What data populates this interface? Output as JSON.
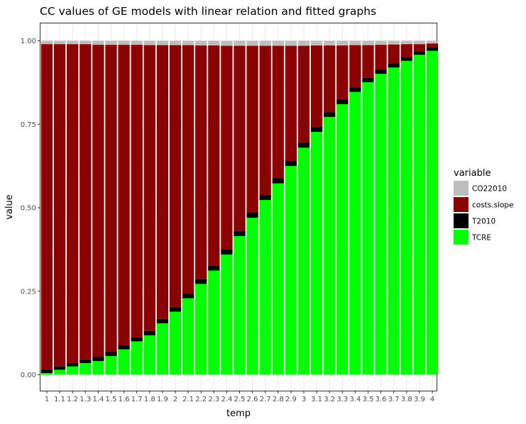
{
  "chart_data": {
    "type": "bar",
    "stacked": true,
    "title": "CC values of GE models with linear relation and fitted graphs",
    "xlabel": "temp",
    "ylabel": "value",
    "ylim": [
      0,
      1
    ],
    "yticks": [
      "0.00",
      "0.25",
      "0.50",
      "0.75",
      "1.00"
    ],
    "ytick_values": [
      0,
      0.25,
      0.5,
      0.75,
      1.0
    ],
    "grid": true,
    "legend_position": "right",
    "legend_title": "variable",
    "categories": [
      "1",
      "1.1",
      "1.2",
      "1.3",
      "1.4",
      "1.5",
      "1.6",
      "1.7",
      "1.8",
      "1.9",
      "2",
      "2.1",
      "2.2",
      "2.3",
      "2.4",
      "2.5",
      "2.6",
      "2.7",
      "2.8",
      "2.9",
      "3",
      "3.1",
      "3.2",
      "3.3",
      "3.4",
      "3.5",
      "3.6",
      "3.7",
      "3.8",
      "3.9",
      "4"
    ],
    "series": [
      {
        "name": "CO22010",
        "color": "#bebebe",
        "values": [
          0.01,
          0.01,
          0.01,
          0.01,
          0.012,
          0.012,
          0.012,
          0.012,
          0.013,
          0.013,
          0.013,
          0.013,
          0.014,
          0.014,
          0.015,
          0.015,
          0.015,
          0.015,
          0.015,
          0.015,
          0.015,
          0.014,
          0.014,
          0.014,
          0.013,
          0.013,
          0.012,
          0.011,
          0.01,
          0.01,
          0.008
        ]
      },
      {
        "name": "costs.slope",
        "color": "#8b0000",
        "values": [
          0.975,
          0.965,
          0.955,
          0.945,
          0.935,
          0.92,
          0.9,
          0.876,
          0.856,
          0.82,
          0.785,
          0.745,
          0.7,
          0.66,
          0.61,
          0.555,
          0.5,
          0.447,
          0.397,
          0.345,
          0.29,
          0.245,
          0.2,
          0.162,
          0.127,
          0.098,
          0.075,
          0.058,
          0.04,
          0.022,
          0.012
        ]
      },
      {
        "name": "T2010",
        "color": "#000000",
        "values": [
          0.01,
          0.01,
          0.01,
          0.01,
          0.012,
          0.012,
          0.012,
          0.012,
          0.013,
          0.013,
          0.013,
          0.013,
          0.014,
          0.014,
          0.015,
          0.015,
          0.015,
          0.015,
          0.015,
          0.015,
          0.015,
          0.014,
          0.014,
          0.014,
          0.013,
          0.013,
          0.012,
          0.011,
          0.01,
          0.01,
          0.01
        ]
      },
      {
        "name": "TCRE",
        "color": "#00ff00",
        "values": [
          0.005,
          0.015,
          0.025,
          0.035,
          0.041,
          0.056,
          0.076,
          0.1,
          0.118,
          0.154,
          0.189,
          0.229,
          0.272,
          0.312,
          0.36,
          0.415,
          0.47,
          0.523,
          0.573,
          0.625,
          0.68,
          0.727,
          0.772,
          0.81,
          0.847,
          0.876,
          0.901,
          0.92,
          0.94,
          0.958,
          0.97
        ]
      }
    ]
  }
}
